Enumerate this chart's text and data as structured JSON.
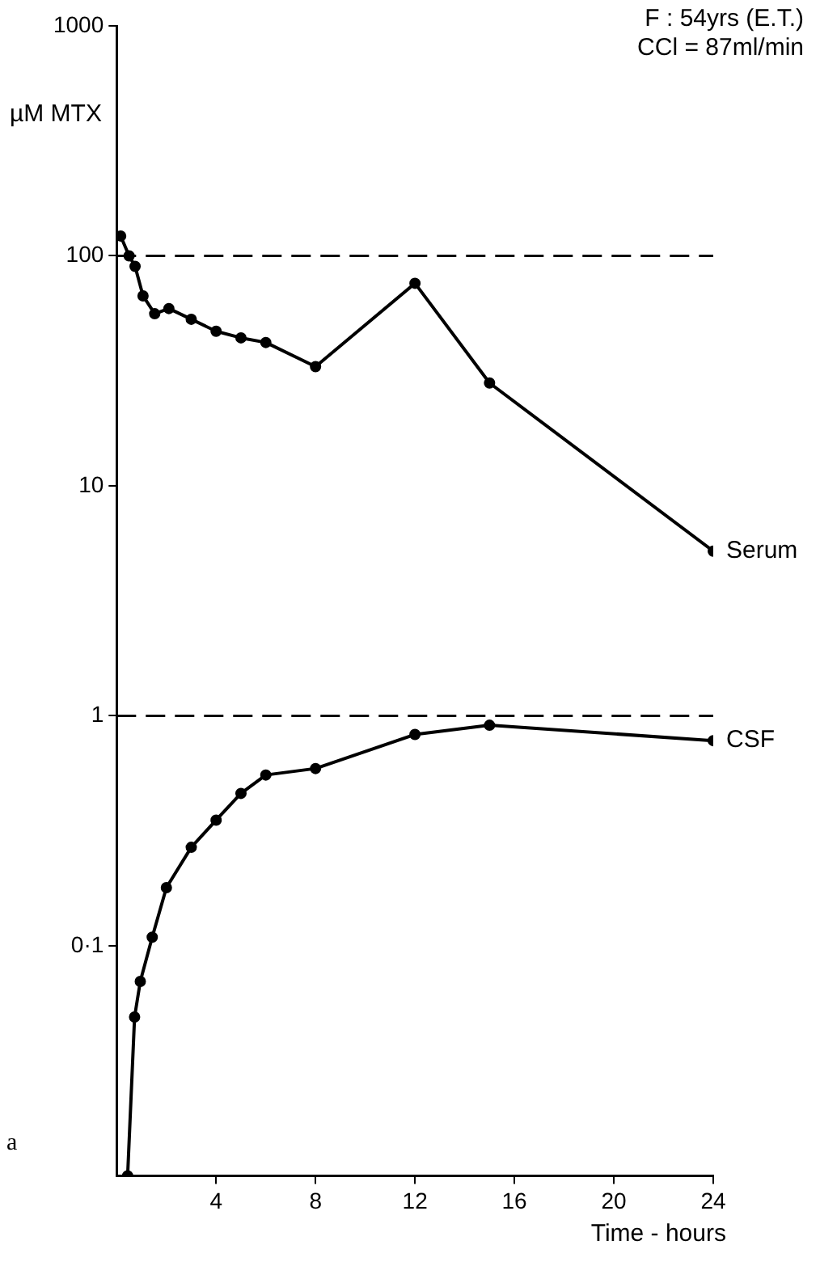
{
  "chart_data": {
    "type": "line",
    "xlabel": "Time - hours",
    "ylabel": "µM MTX",
    "annotations": [
      "F : 54yrs (E.T.)",
      "CCl = 87ml/min",
      "a"
    ],
    "log": "y",
    "xlim": [
      0,
      24
    ],
    "xticks": [
      4,
      8,
      12,
      16,
      20,
      24
    ],
    "ylim": [
      0.01,
      1000
    ],
    "yticks": [
      1000,
      100,
      10,
      1,
      {
        "value": 0.1,
        "label": "0·1"
      }
    ],
    "grid": false,
    "legend": false,
    "marker": "circle",
    "line_style": "solid",
    "ref_lines": [
      {
        "axis": "y",
        "value": 100,
        "line_style": "dashed",
        "color": "#000000"
      },
      {
        "axis": "y",
        "value": 1,
        "line_style": "dashed",
        "color": "#000000"
      }
    ],
    "series": [
      {
        "name": "Serum",
        "color": "#000000",
        "x": [
          0.16,
          0.5,
          0.74,
          1.06,
          1.53,
          2.1,
          3,
          4,
          5,
          6,
          8,
          12,
          15,
          24
        ],
        "values": [
          122,
          100,
          90,
          67,
          56,
          59,
          53,
          47,
          44,
          42,
          33,
          76,
          28,
          5.2
        ]
      },
      {
        "name": "CSF",
        "color": "#000000",
        "x": [
          0.44,
          0.72,
          0.95,
          1.43,
          2,
          3,
          4,
          5,
          6,
          8,
          12,
          15,
          24
        ],
        "values": [
          0.01,
          0.049,
          0.07,
          0.109,
          0.179,
          0.268,
          0.352,
          0.46,
          0.553,
          0.59,
          0.83,
          0.91,
          0.78
        ]
      }
    ]
  }
}
